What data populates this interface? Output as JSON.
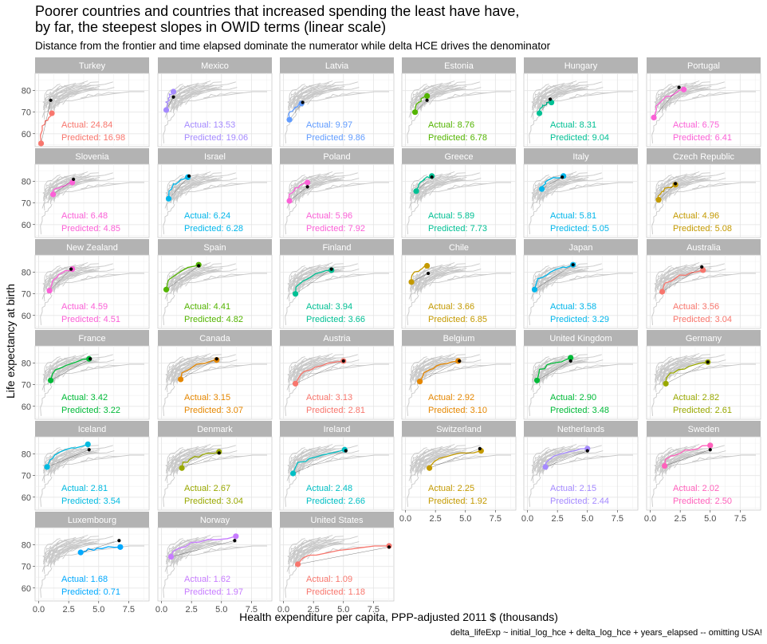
{
  "chart_data": {
    "type": "line",
    "title": "Poorer countries and countries that increased spending the least have have, by far, the steepest slopes in OWID terms (linear scale)",
    "subtitle": "Distance from the frontier and time elapsed dominate the numerator while delta HCE drives the denominator",
    "xlabel": "Health expenditure per capita, PPP-adjusted 2011 $ (thousands)",
    "ylabel": "Life expectancy at birth",
    "caption": "delta_lifeExp ~ initial_log_hce + delta_log_hce + years_elapsed -- omitting USA!",
    "xlim": [
      -0.3,
      9.2
    ],
    "ylim": [
      54,
      88
    ],
    "x_ticks": [
      "0.0",
      "2.5",
      "5.0",
      "7.5"
    ],
    "y_ticks": [
      "60",
      "70",
      "80"
    ],
    "actual_prefix": "Actual: ",
    "predicted_prefix": "Predicted: ",
    "panels": [
      {
        "country": "Turkey",
        "actual": "24.84",
        "predicted": "16.98",
        "color": "#F8766D",
        "start": [
          0.2,
          55.5
        ],
        "end": [
          1.1,
          69.5
        ],
        "pred": [
          1.0,
          75.5
        ]
      },
      {
        "country": "Mexico",
        "actual": "13.53",
        "predicted": "19.06",
        "color": "#A58AFF",
        "start": [
          0.4,
          71.0
        ],
        "end": [
          1.0,
          79.5
        ],
        "pred": [
          1.0,
          77.0
        ]
      },
      {
        "country": "Latvia",
        "actual": "9.97",
        "predicted": "9.86",
        "color": "#619CFF",
        "start": [
          0.5,
          66.5
        ],
        "end": [
          1.5,
          74.0
        ],
        "pred": [
          1.6,
          74.5
        ]
      },
      {
        "country": "Estonia",
        "actual": "8.76",
        "predicted": "6.78",
        "color": "#53B400",
        "start": [
          0.8,
          70.0
        ],
        "end": [
          1.8,
          77.5
        ],
        "pred": [
          1.8,
          75.5
        ]
      },
      {
        "country": "Hungary",
        "actual": "8.31",
        "predicted": "9.04",
        "color": "#00C094",
        "start": [
          1.0,
          69.5
        ],
        "end": [
          2.0,
          74.5
        ],
        "pred": [
          1.9,
          76.0
        ]
      },
      {
        "country": "Portugal",
        "actual": "6.75",
        "predicted": "6.41",
        "color": "#FB61D7",
        "start": [
          0.3,
          67.5
        ],
        "end": [
          2.8,
          80.5
        ],
        "pred": [
          2.4,
          81.5
        ]
      },
      {
        "country": "Slovenia",
        "actual": "6.48",
        "predicted": "4.85",
        "color": "#FB61D7",
        "start": [
          1.2,
          74.0
        ],
        "end": [
          2.8,
          79.5
        ],
        "pred": [
          2.9,
          81.0
        ]
      },
      {
        "country": "Israel",
        "actual": "6.24",
        "predicted": "6.28",
        "color": "#00B6EB",
        "start": [
          0.6,
          72.0
        ],
        "end": [
          2.2,
          82.0
        ],
        "pred": [
          2.3,
          82.5
        ]
      },
      {
        "country": "Poland",
        "actual": "5.96",
        "predicted": "7.92",
        "color": "#FB61D7",
        "start": [
          0.5,
          71.0
        ],
        "end": [
          2.0,
          79.5
        ],
        "pred": [
          2.0,
          77.5
        ]
      },
      {
        "country": "Greece",
        "actual": "5.89",
        "predicted": "7.73",
        "color": "#00C094",
        "start": [
          0.9,
          75.5
        ],
        "end": [
          2.2,
          82.5
        ],
        "pred": [
          2.2,
          82.0
        ]
      },
      {
        "country": "Italy",
        "actual": "5.81",
        "predicted": "5.05",
        "color": "#00B6EB",
        "start": [
          1.2,
          76.5
        ],
        "end": [
          3.0,
          82.5
        ],
        "pred": [
          2.9,
          82.0
        ]
      },
      {
        "country": "Czech Republic",
        "actual": "4.96",
        "predicted": "5.08",
        "color": "#C49A00",
        "start": [
          0.7,
          71.5
        ],
        "end": [
          2.1,
          78.5
        ],
        "pred": [
          2.1,
          79.0
        ]
      },
      {
        "country": "New Zealand",
        "actual": "4.59",
        "predicted": "4.51",
        "color": "#FB61D7",
        "start": [
          0.9,
          71.5
        ],
        "end": [
          2.8,
          81.5
        ],
        "pred": [
          2.7,
          81.5
        ]
      },
      {
        "country": "Spain",
        "actual": "4.41",
        "predicted": "4.82",
        "color": "#53B400",
        "start": [
          0.4,
          72.0
        ],
        "end": [
          3.1,
          83.5
        ],
        "pred": [
          3.1,
          83.0
        ]
      },
      {
        "country": "Finland",
        "actual": "3.94",
        "predicted": "3.66",
        "color": "#00C094",
        "start": [
          1.0,
          70.0
        ],
        "end": [
          4.0,
          81.0
        ],
        "pred": [
          4.0,
          81.5
        ]
      },
      {
        "country": "Chile",
        "actual": "3.66",
        "predicted": "6.85",
        "color": "#C49A00",
        "start": [
          0.5,
          75.5
        ],
        "end": [
          1.8,
          83.0
        ],
        "pred": [
          1.9,
          79.5
        ]
      },
      {
        "country": "Japan",
        "actual": "3.58",
        "predicted": "3.29",
        "color": "#00B6EB",
        "start": [
          0.6,
          72.0
        ],
        "end": [
          3.8,
          83.5
        ],
        "pred": [
          3.8,
          83.5
        ]
      },
      {
        "country": "Australia",
        "actual": "3.56",
        "predicted": "3.04",
        "color": "#F8766D",
        "start": [
          1.0,
          71.0
        ],
        "end": [
          4.4,
          81.0
        ],
        "pred": [
          4.3,
          82.5
        ]
      },
      {
        "country": "France",
        "actual": "3.42",
        "predicted": "3.22",
        "color": "#00BA38",
        "start": [
          1.0,
          72.0
        ],
        "end": [
          4.2,
          82.0
        ],
        "pred": [
          4.3,
          82.0
        ]
      },
      {
        "country": "Canada",
        "actual": "3.15",
        "predicted": "3.07",
        "color": "#E58700",
        "start": [
          1.6,
          72.5
        ],
        "end": [
          4.6,
          81.5
        ],
        "pred": [
          4.6,
          82.0
        ]
      },
      {
        "country": "Austria",
        "actual": "3.13",
        "predicted": "2.81",
        "color": "#F8766D",
        "start": [
          1.0,
          70.5
        ],
        "end": [
          5.0,
          81.0
        ],
        "pred": [
          5.0,
          81.0
        ]
      },
      {
        "country": "Belgium",
        "actual": "2.92",
        "predicted": "3.10",
        "color": "#E58700",
        "start": [
          1.2,
          71.5
        ],
        "end": [
          4.4,
          81.0
        ],
        "pred": [
          4.5,
          81.0
        ]
      },
      {
        "country": "United Kingdom",
        "actual": "2.90",
        "predicted": "3.48",
        "color": "#00BA38",
        "start": [
          0.8,
          72.0
        ],
        "end": [
          3.6,
          82.5
        ],
        "pred": [
          3.6,
          81.0
        ]
      },
      {
        "country": "Germany",
        "actual": "2.82",
        "predicted": "2.61",
        "color": "#99A800",
        "start": [
          1.3,
          70.5
        ],
        "end": [
          4.8,
          80.5
        ],
        "pred": [
          4.8,
          80.5
        ]
      },
      {
        "country": "Iceland",
        "actual": "2.81",
        "predicted": "3.54",
        "color": "#00BAE0",
        "start": [
          0.7,
          74.0
        ],
        "end": [
          4.1,
          84.5
        ],
        "pred": [
          4.2,
          82.0
        ]
      },
      {
        "country": "Denmark",
        "actual": "2.67",
        "predicted": "3.04",
        "color": "#99A800",
        "start": [
          1.7,
          73.5
        ],
        "end": [
          4.8,
          81.0
        ],
        "pred": [
          4.8,
          80.5
        ]
      },
      {
        "country": "Ireland",
        "actual": "2.48",
        "predicted": "2.66",
        "color": "#00BFC4",
        "start": [
          0.8,
          71.0
        ],
        "end": [
          5.1,
          82.0
        ],
        "pred": [
          5.2,
          81.5
        ]
      },
      {
        "country": "Switzerland",
        "actual": "2.25",
        "predicted": "1.92",
        "color": "#C49A00",
        "start": [
          2.0,
          73.5
        ],
        "end": [
          6.3,
          81.5
        ],
        "pred": [
          6.2,
          82.5
        ]
      },
      {
        "country": "Netherlands",
        "actual": "2.15",
        "predicted": "2.44",
        "color": "#A58AFF",
        "start": [
          1.5,
          74.0
        ],
        "end": [
          5.0,
          82.5
        ],
        "pred": [
          5.0,
          81.5
        ]
      },
      {
        "country": "Sweden",
        "actual": "2.02",
        "predicted": "2.50",
        "color": "#FF62BC",
        "start": [
          1.2,
          74.5
        ],
        "end": [
          5.0,
          84.0
        ],
        "pred": [
          5.0,
          82.0
        ]
      },
      {
        "country": "Luxembourg",
        "actual": "1.68",
        "predicted": "0.71",
        "color": "#00A9FF",
        "start": [
          3.5,
          76.5
        ],
        "end": [
          6.8,
          79.0
        ],
        "pred": [
          6.7,
          82.0
        ]
      },
      {
        "country": "Norway",
        "actual": "1.62",
        "predicted": "1.97",
        "color": "#C77CFF",
        "start": [
          0.8,
          74.5
        ],
        "end": [
          6.2,
          84.0
        ],
        "pred": [
          6.1,
          82.0
        ]
      },
      {
        "country": "United States",
        "actual": "1.09",
        "predicted": "1.18",
        "color": "#F8766D",
        "start": [
          1.2,
          71.0
        ],
        "end": [
          8.8,
          79.5
        ],
        "pred": [
          8.8,
          79.0
        ]
      }
    ]
  }
}
